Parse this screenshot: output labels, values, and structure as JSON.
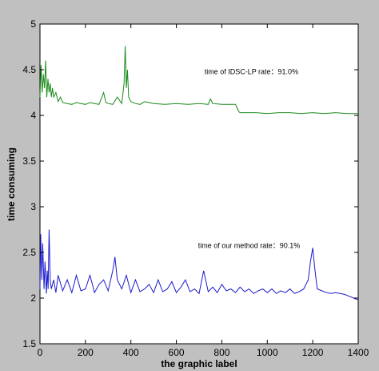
{
  "chart_data": {
    "type": "line",
    "xlabel": "the graphic label",
    "ylabel": "time consuming",
    "xlim": [
      0,
      1400
    ],
    "ylim": [
      1.5,
      5
    ],
    "xticks": [
      0,
      200,
      400,
      600,
      800,
      1000,
      1200,
      1400
    ],
    "yticks": [
      1.5,
      2,
      2.5,
      3,
      3.5,
      4,
      4.5,
      5
    ],
    "grid": false,
    "background": "#c0c0c0",
    "plot_background": "#ffffff",
    "annotations": [
      {
        "text": "time of IDSC-LP    rate：91.0%",
        "x": 930,
        "y": 4.45
      },
      {
        "text": "time of our method    rate：90.1%",
        "x": 920,
        "y": 2.55
      }
    ],
    "series": [
      {
        "color": "#1a8a1a",
        "x": [
          0,
          5,
          10,
          15,
          20,
          25,
          30,
          35,
          40,
          45,
          50,
          55,
          60,
          70,
          80,
          90,
          100,
          120,
          140,
          160,
          180,
          200,
          220,
          240,
          260,
          280,
          290,
          300,
          320,
          340,
          360,
          370,
          375,
          380,
          385,
          390,
          400,
          420,
          440,
          460,
          480,
          500,
          550,
          600,
          650,
          700,
          740,
          750,
          760,
          800,
          860,
          875,
          880,
          900,
          950,
          1000,
          1050,
          1100,
          1150,
          1200,
          1250,
          1300,
          1350,
          1400
        ],
        "y": [
          4.2,
          4.55,
          4.25,
          4.45,
          4.3,
          4.6,
          4.2,
          4.4,
          4.25,
          4.35,
          4.2,
          4.3,
          4.2,
          4.25,
          4.15,
          4.2,
          4.14,
          4.13,
          4.12,
          4.14,
          4.13,
          4.12,
          4.14,
          4.13,
          4.12,
          4.25,
          4.14,
          4.13,
          4.12,
          4.2,
          4.13,
          4.35,
          4.76,
          4.3,
          4.5,
          4.2,
          4.15,
          4.13,
          4.12,
          4.15,
          4.14,
          4.13,
          4.12,
          4.13,
          4.12,
          4.13,
          4.12,
          4.18,
          4.13,
          4.12,
          4.12,
          4.04,
          4.03,
          4.03,
          4.03,
          4.02,
          4.03,
          4.03,
          4.02,
          4.03,
          4.02,
          4.03,
          4.02,
          4.02
        ]
      },
      {
        "color": "#1a1acc",
        "x": [
          0,
          3,
          8,
          12,
          18,
          22,
          28,
          32,
          36,
          40,
          45,
          50,
          60,
          70,
          80,
          100,
          120,
          140,
          160,
          180,
          200,
          220,
          240,
          260,
          280,
          300,
          320,
          330,
          340,
          360,
          380,
          400,
          420,
          440,
          460,
          480,
          500,
          520,
          540,
          560,
          580,
          600,
          620,
          640,
          660,
          680,
          700,
          720,
          740,
          760,
          780,
          800,
          820,
          840,
          860,
          880,
          900,
          920,
          940,
          960,
          980,
          1000,
          1020,
          1040,
          1060,
          1080,
          1100,
          1120,
          1140,
          1160,
          1180,
          1190,
          1200,
          1210,
          1220,
          1240,
          1260,
          1280,
          1300,
          1320,
          1340,
          1360,
          1380,
          1400
        ],
        "y": [
          2.1,
          2.7,
          2.2,
          2.6,
          2.1,
          2.4,
          2.05,
          2.3,
          2.1,
          2.75,
          2.2,
          2.1,
          2.2,
          2.06,
          2.25,
          2.08,
          2.2,
          2.06,
          2.25,
          2.08,
          2.1,
          2.25,
          2.06,
          2.15,
          2.2,
          2.08,
          2.3,
          2.45,
          2.2,
          2.1,
          2.25,
          2.06,
          2.2,
          2.07,
          2.1,
          2.15,
          2.06,
          2.2,
          2.07,
          2.1,
          2.18,
          2.06,
          2.12,
          2.2,
          2.07,
          2.1,
          2.05,
          2.3,
          2.07,
          2.12,
          2.06,
          2.15,
          2.08,
          2.1,
          2.06,
          2.12,
          2.07,
          2.1,
          2.05,
          2.08,
          2.1,
          2.06,
          2.1,
          2.05,
          2.08,
          2.06,
          2.1,
          2.05,
          2.07,
          2.1,
          2.2,
          2.4,
          2.55,
          2.3,
          2.1,
          2.08,
          2.06,
          2.05,
          2.06,
          2.05,
          2.04,
          2.02,
          2.0,
          1.98
        ]
      }
    ]
  }
}
